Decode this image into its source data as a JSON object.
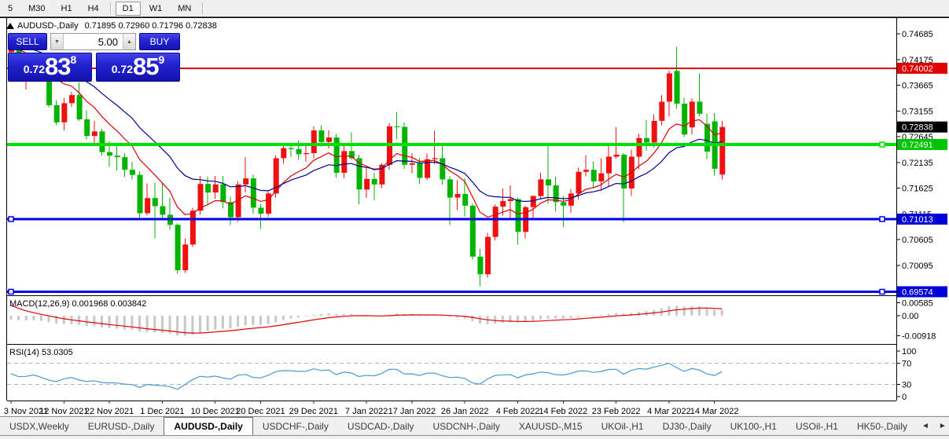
{
  "toolbar": {
    "items": [
      {
        "label": "5",
        "active": false
      },
      {
        "label": "M30",
        "active": false
      },
      {
        "label": "H1",
        "active": false
      },
      {
        "label": "H4",
        "active": false
      },
      {
        "label": "D1",
        "active": true
      },
      {
        "label": "W1",
        "active": false
      },
      {
        "label": "MN",
        "active": false
      }
    ]
  },
  "chart_header": {
    "symbol": "AUDUSD-,Daily",
    "ohlc_text": "0.71895 0.72960 0.71796 0.72838"
  },
  "trade_panel": {
    "sell_label": "SELL",
    "buy_label": "BUY",
    "volume": "5.00",
    "volume_down_icon": "▼",
    "volume_up_icon": "▲",
    "sell_price": {
      "small": "0.72",
      "big": "83",
      "sup": "8"
    },
    "buy_price": {
      "small": "0.72",
      "big": "85",
      "sup": "9"
    }
  },
  "bottom_tabs": {
    "items": [
      "USDX,Weekly",
      "EURUSD-,Daily",
      "AUDUSD-,Daily",
      "USDCHF-,Daily",
      "USDCAD-,Daily",
      "USDCNH-,Daily",
      "XAUUSD-,M15",
      "UKOil-,H1",
      "DJ30-,Daily",
      "UK100-,H1",
      "USOil-,H1",
      "HK50-,Daily"
    ],
    "active_index": 2,
    "scroll_left_icon": "◄",
    "scroll_right_icon": "►"
  },
  "chart_data": {
    "type": "candlestick",
    "symbol": "AUDUSD-",
    "timeframe": "Daily",
    "up_color": "#ee1111",
    "down_color": "#00b400",
    "note": "this theme draws bullish candles red and bearish candles green",
    "ohlc": [
      [
        0.7432,
        0.7455,
        0.7428,
        0.7448
      ],
      [
        0.7448,
        0.7452,
        0.7388,
        0.7397
      ],
      [
        0.7397,
        0.7408,
        0.7358,
        0.7401
      ],
      [
        0.7401,
        0.7424,
        0.7388,
        0.7421
      ],
      [
        0.7421,
        0.7432,
        0.7376,
        0.738
      ],
      [
        0.738,
        0.7388,
        0.7323,
        0.7327
      ],
      [
        0.7327,
        0.7337,
        0.7287,
        0.7293
      ],
      [
        0.7293,
        0.7341,
        0.7277,
        0.7331
      ],
      [
        0.7331,
        0.7353,
        0.7324,
        0.7347
      ],
      [
        0.7347,
        0.7372,
        0.7296,
        0.7299
      ],
      [
        0.7299,
        0.7317,
        0.7259,
        0.7266
      ],
      [
        0.7266,
        0.7296,
        0.725,
        0.7275
      ],
      [
        0.7275,
        0.728,
        0.7227,
        0.7234
      ],
      [
        0.7234,
        0.7255,
        0.7205,
        0.7227
      ],
      [
        0.7227,
        0.7245,
        0.7198,
        0.7224
      ],
      [
        0.7224,
        0.7232,
        0.7185,
        0.7199
      ],
      [
        0.7199,
        0.7215,
        0.718,
        0.7189
      ],
      [
        0.7189,
        0.7196,
        0.71,
        0.7113
      ],
      [
        0.7113,
        0.7172,
        0.7109,
        0.7143
      ],
      [
        0.7143,
        0.7173,
        0.7063,
        0.7127
      ],
      [
        0.7127,
        0.7172,
        0.71,
        0.711
      ],
      [
        0.711,
        0.7144,
        0.708,
        0.709
      ],
      [
        0.709,
        0.7093,
        0.6993,
        0.7
      ],
      [
        0.7,
        0.7063,
        0.6995,
        0.7051
      ],
      [
        0.7051,
        0.7124,
        0.7046,
        0.7118
      ],
      [
        0.7118,
        0.7187,
        0.711,
        0.7171
      ],
      [
        0.7171,
        0.7185,
        0.713,
        0.7154
      ],
      [
        0.7154,
        0.7187,
        0.7142,
        0.717
      ],
      [
        0.717,
        0.7187,
        0.7123,
        0.7135
      ],
      [
        0.7135,
        0.7146,
        0.709,
        0.7105
      ],
      [
        0.7105,
        0.7176,
        0.7096,
        0.717
      ],
      [
        0.717,
        0.7224,
        0.7154,
        0.7182
      ],
      [
        0.7182,
        0.7189,
        0.7112,
        0.7124
      ],
      [
        0.7124,
        0.7131,
        0.7082,
        0.7112
      ],
      [
        0.7112,
        0.7157,
        0.7106,
        0.7152
      ],
      [
        0.7152,
        0.7227,
        0.7144,
        0.7222
      ],
      [
        0.7222,
        0.7252,
        0.7211,
        0.7242
      ],
      [
        0.7242,
        0.725,
        0.7224,
        0.724
      ],
      [
        0.724,
        0.7257,
        0.7219,
        0.723
      ],
      [
        0.723,
        0.7248,
        0.7215,
        0.7232
      ],
      [
        0.7232,
        0.7285,
        0.7222,
        0.7277
      ],
      [
        0.7277,
        0.7287,
        0.7245,
        0.7254
      ],
      [
        0.7254,
        0.7277,
        0.7241,
        0.7263
      ],
      [
        0.7263,
        0.7269,
        0.7184,
        0.7193
      ],
      [
        0.7193,
        0.7247,
        0.7183,
        0.7236
      ],
      [
        0.7236,
        0.7273,
        0.7219,
        0.7222
      ],
      [
        0.7222,
        0.7229,
        0.7131,
        0.716
      ],
      [
        0.716,
        0.7203,
        0.7143,
        0.7181
      ],
      [
        0.7181,
        0.7193,
        0.7139,
        0.717
      ],
      [
        0.717,
        0.7212,
        0.7163,
        0.7209
      ],
      [
        0.7209,
        0.7291,
        0.7199,
        0.7285
      ],
      [
        0.7285,
        0.7314,
        0.726,
        0.7284
      ],
      [
        0.7284,
        0.7293,
        0.7201,
        0.7209
      ],
      [
        0.7209,
        0.7232,
        0.7192,
        0.7212
      ],
      [
        0.7212,
        0.7222,
        0.7171,
        0.7183
      ],
      [
        0.7183,
        0.7231,
        0.7178,
        0.722
      ],
      [
        0.722,
        0.7276,
        0.721,
        0.7222
      ],
      [
        0.7222,
        0.725,
        0.717,
        0.718
      ],
      [
        0.718,
        0.7186,
        0.709,
        0.7144
      ],
      [
        0.7144,
        0.7178,
        0.7119,
        0.7151
      ],
      [
        0.7151,
        0.7182,
        0.7107,
        0.7128
      ],
      [
        0.7128,
        0.7132,
        0.7021,
        0.7027
      ],
      [
        0.7027,
        0.7042,
        0.6968,
        0.6992
      ],
      [
        0.6992,
        0.7074,
        0.6985,
        0.7066
      ],
      [
        0.7066,
        0.713,
        0.7059,
        0.7126
      ],
      [
        0.7126,
        0.7162,
        0.7108,
        0.7137
      ],
      [
        0.7137,
        0.7168,
        0.71,
        0.7141
      ],
      [
        0.7141,
        0.7144,
        0.7051,
        0.7076
      ],
      [
        0.7076,
        0.7128,
        0.7063,
        0.7125
      ],
      [
        0.7125,
        0.7149,
        0.71,
        0.7147
      ],
      [
        0.7147,
        0.7193,
        0.714,
        0.718
      ],
      [
        0.718,
        0.7249,
        0.7132,
        0.7168
      ],
      [
        0.7168,
        0.7185,
        0.7117,
        0.7135
      ],
      [
        0.7135,
        0.7147,
        0.7086,
        0.7128
      ],
      [
        0.7128,
        0.7161,
        0.7114,
        0.7152
      ],
      [
        0.7152,
        0.7203,
        0.714,
        0.7195
      ],
      [
        0.7195,
        0.7228,
        0.7186,
        0.7199
      ],
      [
        0.7199,
        0.7216,
        0.7163,
        0.7176
      ],
      [
        0.7176,
        0.7222,
        0.7157,
        0.7192
      ],
      [
        0.7192,
        0.7247,
        0.7167,
        0.7225
      ],
      [
        0.7225,
        0.7283,
        0.7221,
        0.7229
      ],
      [
        0.7229,
        0.7232,
        0.7095,
        0.7162
      ],
      [
        0.7162,
        0.7239,
        0.7147,
        0.7225
      ],
      [
        0.7225,
        0.727,
        0.72,
        0.7262
      ],
      [
        0.7262,
        0.7297,
        0.7237,
        0.7253
      ],
      [
        0.7253,
        0.7309,
        0.7244,
        0.7296
      ],
      [
        0.7296,
        0.7347,
        0.7287,
        0.7334
      ],
      [
        0.7334,
        0.7395,
        0.7305,
        0.739
      ],
      [
        0.7395,
        0.7443,
        0.732,
        0.733
      ],
      [
        0.733,
        0.7342,
        0.7264,
        0.7269
      ],
      [
        0.7283,
        0.734,
        0.7269,
        0.7334
      ],
      [
        0.7334,
        0.739,
        0.7305,
        0.731
      ],
      [
        0.729,
        0.731,
        0.722,
        0.7235
      ],
      [
        0.7295,
        0.7311,
        0.7188,
        0.7201
      ],
      [
        0.71895,
        0.7296,
        0.71796,
        0.72838
      ]
    ],
    "date_ticks": [
      {
        "label": "3 Nov 2021",
        "bar": 0
      },
      {
        "label": "12 Nov 2021",
        "bar": 7
      },
      {
        "label": "22 Nov 2021",
        "bar": 13
      },
      {
        "label": "1 Dec 2021",
        "bar": 20
      },
      {
        "label": "10 Dec 2021",
        "bar": 27
      },
      {
        "label": "20 Dec 2021",
        "bar": 33
      },
      {
        "label": "29 Dec 2021",
        "bar": 40
      },
      {
        "label": "7 Jan 2022",
        "bar": 47
      },
      {
        "label": "17 Jan 2022",
        "bar": 53
      },
      {
        "label": "26 Jan 2022",
        "bar": 60
      },
      {
        "label": "4 Feb 2022",
        "bar": 67
      },
      {
        "label": "14 Feb 2022",
        "bar": 73
      },
      {
        "label": "23 Feb 2022",
        "bar": 80
      },
      {
        "label": "4 Mar 2022",
        "bar": 87
      },
      {
        "label": "14 Mar 2022",
        "bar": 93
      }
    ],
    "y_axis_ticks": [
      "0.74685",
      "0.74175",
      "0.73665",
      "0.73155",
      "0.72645",
      "0.72135",
      "0.71625",
      "0.71115",
      "0.70605",
      "0.70095"
    ],
    "price_badges": [
      {
        "value": "0.74002",
        "bg": "#e00000",
        "fg": "#ffffff"
      },
      {
        "value": "0.72838",
        "bg": "#000000",
        "fg": "#ffffff"
      },
      {
        "value": "0.72491",
        "bg": "#00c400",
        "fg": "#ffffff"
      },
      {
        "value": "0.71013",
        "bg": "#0000d9",
        "fg": "#ffffff"
      },
      {
        "value": "0.69574",
        "bg": "#0000d9",
        "fg": "#ffffff"
      }
    ],
    "hlines": [
      {
        "price": 0.74002,
        "color": "#f00000",
        "width": 2,
        "handles": []
      },
      {
        "price": 0.72491,
        "color": "#00e000",
        "width": 4,
        "handles": [
          "right"
        ]
      },
      {
        "price": 0.71013,
        "color": "#0000e8",
        "width": 3,
        "handles": [
          "left",
          "right"
        ]
      },
      {
        "price": 0.69574,
        "color": "#0000e8",
        "width": 3,
        "handles": [
          "left",
          "right"
        ]
      }
    ],
    "moving_averages": [
      {
        "period": 9,
        "color": "#e00000"
      },
      {
        "period": 19,
        "color": "#00008b"
      }
    ],
    "macd": {
      "label_text": "MACD(12,26,9) 0.001968 0.003842",
      "params": [
        12,
        26,
        9
      ],
      "current_macd": 0.001968,
      "current_signal": 0.003842,
      "axis_ticks": [
        "0.00585",
        "0.00",
        "-0.00918"
      ],
      "axis_values": [
        0.00585,
        0,
        -0.00918
      ],
      "hist_color": "#c8c8c8",
      "signal_color": "#e00000"
    },
    "rsi": {
      "label_text": "RSI(14) 53.0305",
      "period": 14,
      "current": 53.0305,
      "axis_ticks": [
        "100",
        "70",
        "30",
        "0"
      ],
      "levels": [
        70,
        30
      ],
      "color": "#4899d4",
      "level_color": "#b4b4b4"
    }
  }
}
